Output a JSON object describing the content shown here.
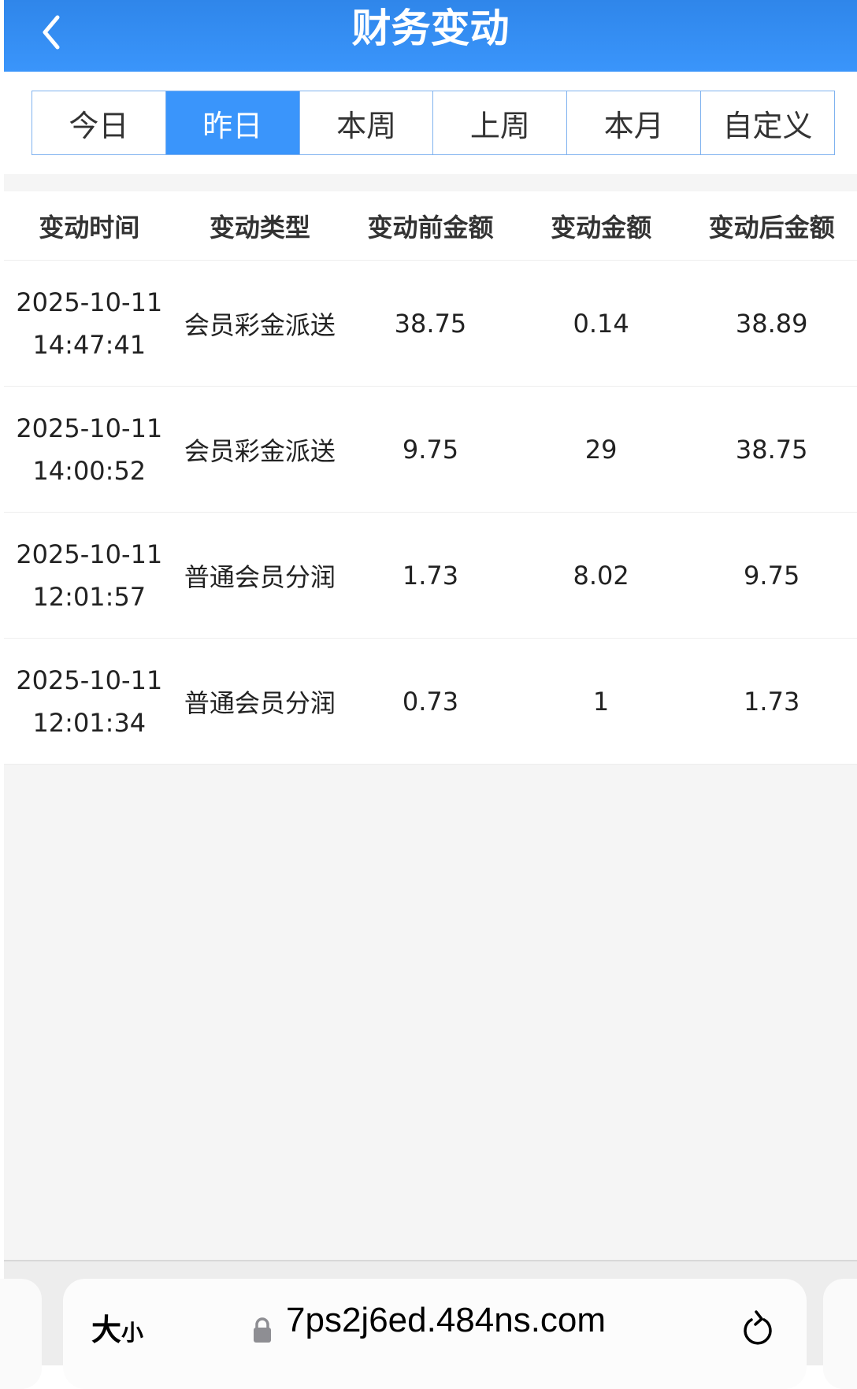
{
  "header": {
    "title": "财务变动",
    "back_icon": "chevron-left-icon"
  },
  "tabs": [
    {
      "label": "今日",
      "active": false
    },
    {
      "label": "昨日",
      "active": true
    },
    {
      "label": "本周",
      "active": false
    },
    {
      "label": "上周",
      "active": false
    },
    {
      "label": "本月",
      "active": false
    },
    {
      "label": "自定义",
      "active": false
    }
  ],
  "table": {
    "columns": [
      "变动时间",
      "变动类型",
      "变动前金额",
      "变动金额",
      "变动后金额"
    ],
    "rows": [
      {
        "date": "2025-10-11",
        "time": "14:47:41",
        "type": "会员彩金派送",
        "before": "38.75",
        "amount": "0.14",
        "after": "38.89"
      },
      {
        "date": "2025-10-11",
        "time": "14:00:52",
        "type": "会员彩金派送",
        "before": "9.75",
        "amount": "29",
        "after": "38.75"
      },
      {
        "date": "2025-10-11",
        "time": "12:01:57",
        "type": "普通会员分润",
        "before": "1.73",
        "amount": "8.02",
        "after": "9.75"
      },
      {
        "date": "2025-10-11",
        "time": "12:01:34",
        "type": "普通会员分润",
        "before": "0.73",
        "amount": "1",
        "after": "1.73"
      }
    ]
  },
  "browser": {
    "text_size_big": "大",
    "text_size_small": "小",
    "url": "7ps2j6ed.484ns.com"
  },
  "colors": {
    "accent": "#3a95fb"
  }
}
